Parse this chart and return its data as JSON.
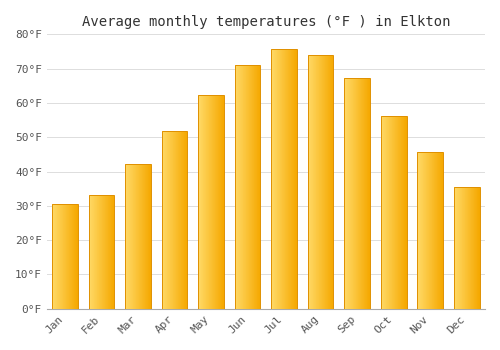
{
  "months": [
    "Jan",
    "Feb",
    "Mar",
    "Apr",
    "May",
    "Jun",
    "Jul",
    "Aug",
    "Sep",
    "Oct",
    "Nov",
    "Dec"
  ],
  "values": [
    30.5,
    33.3,
    42.3,
    51.7,
    62.3,
    71.2,
    75.7,
    74.1,
    67.3,
    56.3,
    45.7,
    35.5
  ],
  "bar_color_left": "#FFD966",
  "bar_color_right": "#F5A800",
  "bar_edge_color": "#E09000",
  "title": "Average monthly temperatures (°F ) in Elkton",
  "ylim": [
    0,
    80
  ],
  "yticks": [
    0,
    10,
    20,
    30,
    40,
    50,
    60,
    70,
    80
  ],
  "ytick_labels": [
    "0°F",
    "10°F",
    "20°F",
    "30°F",
    "40°F",
    "50°F",
    "60°F",
    "70°F",
    "80°F"
  ],
  "background_color": "#ffffff",
  "grid_color": "#dddddd",
  "title_fontsize": 10,
  "tick_fontsize": 8,
  "font_color": "#555555"
}
